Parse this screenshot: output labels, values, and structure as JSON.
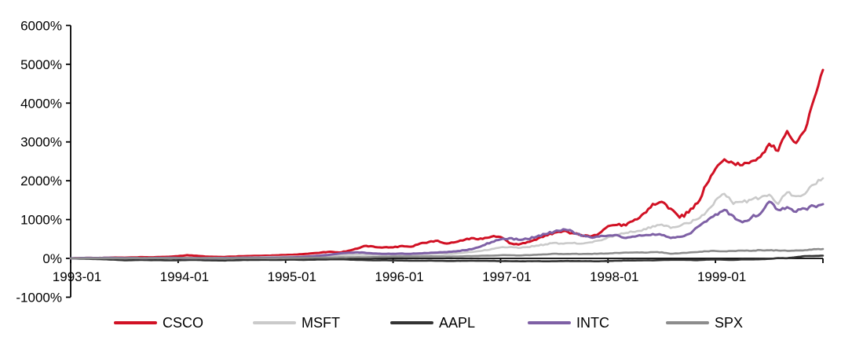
{
  "chart_data": {
    "type": "line",
    "title": "",
    "xlabel": "",
    "ylabel": "",
    "y_unit": "%",
    "ylim": [
      -1000,
      6000
    ],
    "y_tick_step": 1000,
    "y_tick_labels": [
      "6000%",
      "5000%",
      "4000%",
      "3000%",
      "2000%",
      "1000%",
      "0%",
      "-1000%"
    ],
    "x_tick_labels": [
      "1993-01",
      "1994-01",
      "1995-01",
      "1996-01",
      "1997-01",
      "1998-01",
      "1999-01"
    ],
    "x_range_start": "1993-01",
    "x_range_end": "2000-01",
    "sampling": "monthly",
    "grid": false,
    "legend_position": "bottom",
    "axis_color": "#000000",
    "series": [
      {
        "name": "CSCO",
        "color": "#D11124",
        "stroke_width": 3,
        "values": [
          0,
          6,
          12,
          8,
          16,
          22,
          18,
          26,
          33,
          28,
          36,
          42,
          58,
          82,
          68,
          48,
          40,
          36,
          46,
          55,
          60,
          66,
          70,
          78,
          86,
          96,
          112,
          132,
          152,
          172,
          152,
          196,
          252,
          324,
          292,
          286,
          283,
          322,
          302,
          382,
          425,
          455,
          382,
          420,
          480,
          520,
          502,
          560,
          552,
          392,
          356,
          420,
          482,
          592,
          662,
          702,
          652,
          602,
          562,
          642,
          830,
          862,
          850,
          1002,
          1162,
          1402,
          1457,
          1282,
          1052,
          1182,
          1422,
          1902,
          2306,
          2552,
          2452,
          2402,
          2502,
          2612,
          2952,
          2772,
          3282,
          2972,
          3302,
          4102,
          4855
        ]
      },
      {
        "name": "MSFT",
        "color": "#CACACA",
        "stroke_width": 2.6,
        "values": [
          0,
          -4,
          -2,
          1,
          3,
          1,
          -4,
          -7,
          -5,
          0,
          4,
          1,
          3,
          1,
          5,
          9,
          12,
          14,
          16,
          21,
          26,
          31,
          36,
          41,
          45,
          50,
          55,
          62,
          72,
          82,
          88,
          92,
          96,
          90,
          97,
          88,
          95,
          100,
          98,
          108,
          118,
          125,
          112,
          128,
          150,
          170,
          200,
          240,
          283,
          292,
          270,
          292,
          330,
          362,
          400,
          378,
          392,
          380,
          412,
          462,
          546,
          602,
          655,
          682,
          755,
          832,
          872,
          782,
          832,
          905,
          1012,
          1202,
          1497,
          1662,
          1402,
          1452,
          1512,
          1562,
          1642,
          1402,
          1702,
          1602,
          1662,
          1902,
          2063
        ]
      },
      {
        "name": "AAPL",
        "color": "#333333",
        "stroke_width": 2.6,
        "values": [
          0,
          -8,
          -12,
          -18,
          -25,
          -35,
          -48,
          -45,
          -40,
          -47,
          -45,
          -50,
          -46,
          -43,
          -40,
          -50,
          -52,
          -55,
          -50,
          -44,
          -40,
          -38,
          -35,
          -40,
          -35,
          -32,
          -38,
          -35,
          -28,
          -25,
          -22,
          -30,
          -38,
          -44,
          -50,
          -47,
          -52,
          -55,
          -58,
          -60,
          -56,
          -62,
          -66,
          -64,
          -63,
          -60,
          -62,
          -64,
          -68,
          -70,
          -72,
          -71,
          -70,
          -74,
          -72,
          -68,
          -66,
          -70,
          -69,
          -75,
          -68,
          -60,
          -54,
          -54,
          -50,
          -52,
          -42,
          -36,
          -36,
          -38,
          -47,
          -32,
          -30,
          -35,
          -40,
          -25,
          -27,
          -23,
          -13,
          8,
          5,
          32,
          60,
          63,
          70
        ]
      },
      {
        "name": "INTC",
        "color": "#7E60A5",
        "stroke_width": 3,
        "values": [
          0,
          8,
          12,
          10,
          14,
          12,
          8,
          10,
          6,
          8,
          12,
          14,
          10,
          6,
          8,
          5,
          6,
          8,
          10,
          14,
          16,
          18,
          16,
          18,
          22,
          28,
          38,
          55,
          75,
          95,
          125,
          145,
          158,
          140,
          128,
          118,
          120,
          125,
          118,
          130,
          140,
          152,
          160,
          180,
          210,
          250,
          330,
          420,
          490,
          520,
          480,
          500,
          555,
          625,
          690,
          750,
          700,
          580,
          546,
          560,
          587,
          600,
          526,
          560,
          590,
          627,
          600,
          526,
          555,
          625,
          810,
          950,
          1133,
          1250,
          1092,
          930,
          1050,
          1150,
          1460,
          1250,
          1320,
          1200,
          1280,
          1350,
          1396
        ]
      },
      {
        "name": "SPX",
        "color": "#8C8C8C",
        "stroke_width": 2.6,
        "values": [
          0,
          1,
          3,
          2,
          4,
          4,
          3,
          6,
          5,
          7,
          6,
          7,
          10,
          7,
          3,
          4,
          5,
          2,
          5,
          9,
          6,
          8,
          4,
          5,
          8,
          12,
          15,
          18,
          22,
          24,
          28,
          28,
          32,
          31,
          36,
          39,
          46,
          47,
          48,
          50,
          53,
          53,
          47,
          50,
          57,
          60,
          70,
          70,
          81,
          82,
          74,
          84,
          93,
          103,
          119,
          109,
          118,
          111,
          116,
          123,
          125,
          141,
          151,
          153,
          149,
          160,
          157,
          120,
          132,
          150,
          162,
          183,
          191,
          182,
          190,
          200,
          194,
          215,
          208,
          204,
          195,
          207,
          212,
          238,
          240
        ]
      }
    ]
  },
  "legend": {
    "items": [
      {
        "label": "CSCO",
        "color": "#D11124"
      },
      {
        "label": "MSFT",
        "color": "#CACACA"
      },
      {
        "label": "AAPL",
        "color": "#333333"
      },
      {
        "label": "INTC",
        "color": "#7E60A5"
      },
      {
        "label": "SPX",
        "color": "#8C8C8C"
      }
    ]
  }
}
